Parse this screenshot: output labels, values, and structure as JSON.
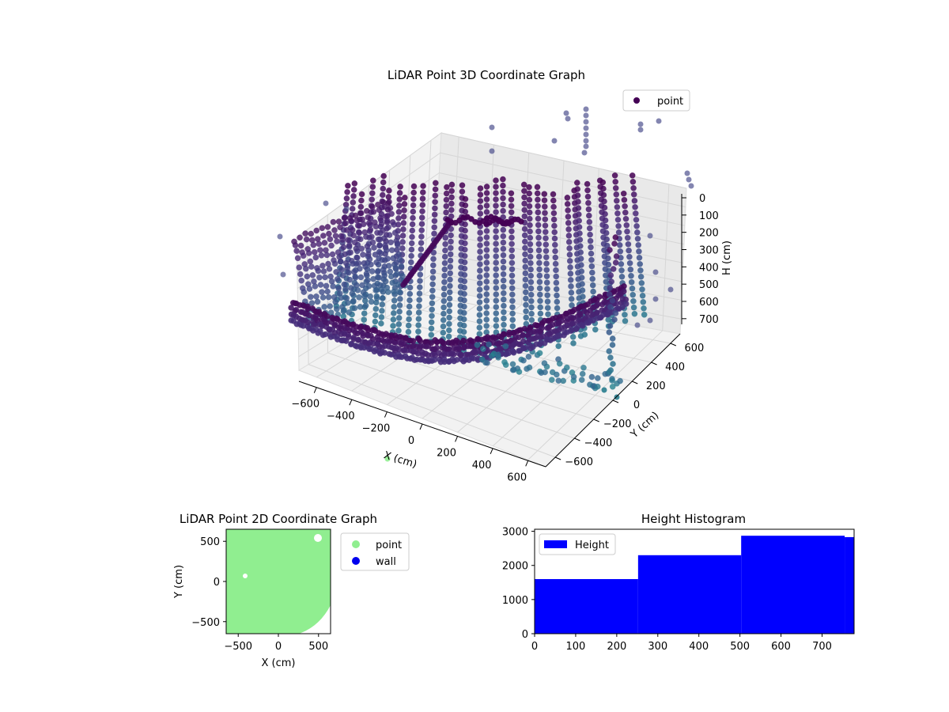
{
  "chart_data": [
    {
      "type": "scatter",
      "projection": "3d",
      "title": "LiDAR Point 3D Coordinate Graph",
      "xlabel": "X (cm)",
      "ylabel": "Y (cm)",
      "zlabel": "H (cm)",
      "x_ticks": [
        "−600",
        "−400",
        "−200",
        "0",
        "200",
        "400",
        "600"
      ],
      "y_ticks": [
        "−600",
        "−400",
        "−200",
        "0",
        "200",
        "400",
        "600"
      ],
      "z_ticks": [
        "0",
        "100",
        "200",
        "300",
        "400",
        "500",
        "600",
        "700"
      ],
      "xlim": [
        -650,
        650
      ],
      "ylim": [
        -650,
        650
      ],
      "zlim": [
        0,
        780
      ],
      "z_inverted": true,
      "colormap": "viridis",
      "grid": true,
      "legend": {
        "position": "top-right",
        "entries": [
          {
            "name": "point",
            "color": "#440154"
          }
        ]
      },
      "series": [
        {
          "name": "point"
        }
      ]
    },
    {
      "type": "scatter",
      "title": "LiDAR Point 2D Coordinate Graph",
      "xlabel": "X (cm)",
      "ylabel": "Y (cm)",
      "x_ticks": [
        "−500",
        "0",
        "500"
      ],
      "y_ticks": [
        "500",
        "0",
        "−500"
      ],
      "xlim": [
        -650,
        650
      ],
      "ylim": [
        -650,
        650
      ],
      "legend": {
        "position": "outside-right",
        "entries": [
          {
            "name": "point",
            "color": "#90ee90"
          },
          {
            "name": "wall",
            "color": "#0000ee"
          }
        ]
      },
      "series": [
        {
          "name": "point",
          "color": "#90ee90"
        },
        {
          "name": "wall",
          "color": "#0000ee"
        }
      ]
    },
    {
      "type": "bar",
      "title": "Height Histogram",
      "x_ticks": [
        "0",
        "100",
        "200",
        "300",
        "400",
        "500",
        "600",
        "700"
      ],
      "y_ticks": [
        "0",
        "1000",
        "2000",
        "3000"
      ],
      "xlim": [
        0,
        778
      ],
      "ylim": [
        0,
        3060
      ],
      "color": "#0000ff",
      "legend": {
        "position": "top-left",
        "entries": [
          {
            "name": "Height",
            "color": "#0000ff"
          }
        ]
      },
      "bins": [
        {
          "x0": 0,
          "x1": 252,
          "count": 1600
        },
        {
          "x0": 252,
          "x1": 503,
          "count": 2300
        },
        {
          "x0": 503,
          "x1": 755,
          "count": 2870
        },
        {
          "x0": 755,
          "x1": 778,
          "count": 2830
        }
      ]
    }
  ]
}
